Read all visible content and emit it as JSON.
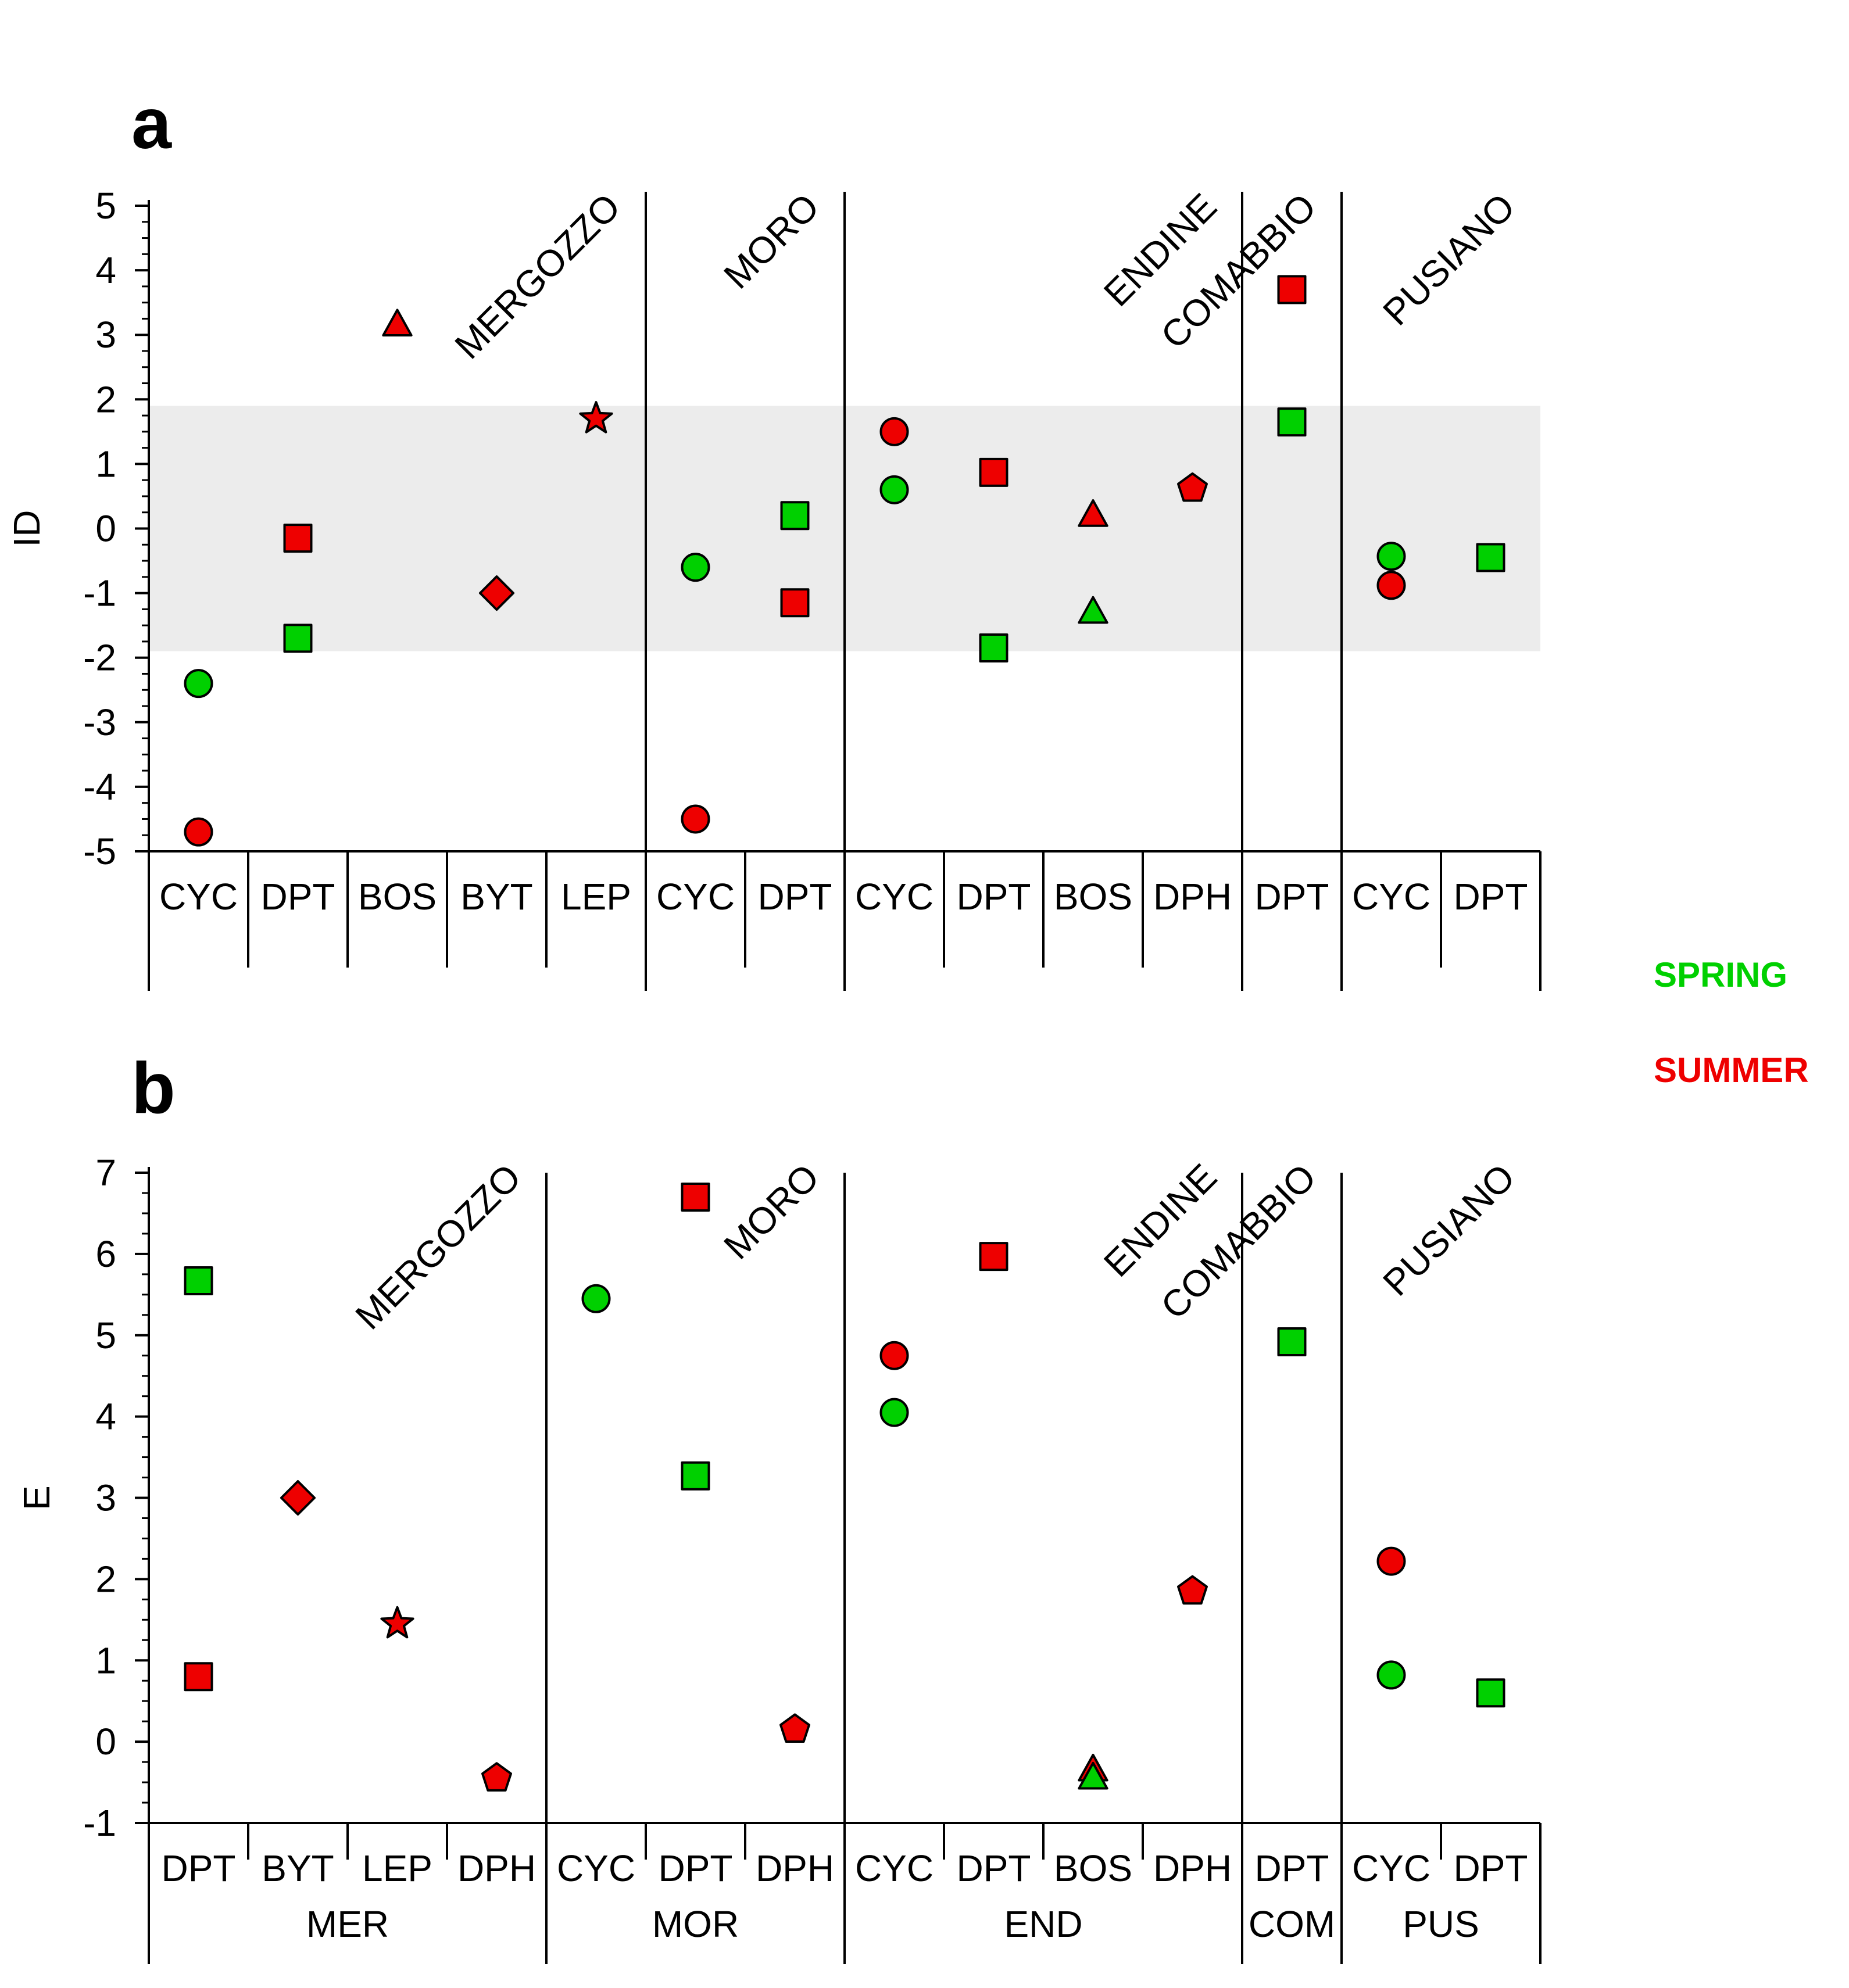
{
  "colors": {
    "spring": "#00d000",
    "summer": "#ee0000",
    "shade": "#ececec"
  },
  "legend": {
    "spring": "SPRING",
    "summer": "SUMMER"
  },
  "chart_data": [
    {
      "panel": "a",
      "type": "scatter",
      "ylabel": "ID",
      "ylim": [
        -5,
        5
      ],
      "yticks": [
        -5,
        -4,
        -3,
        -2,
        -1,
        0,
        1,
        2,
        3,
        4,
        5
      ],
      "yticklabels": [
        "-5",
        "-4",
        "-3",
        "-2",
        "-1",
        "0",
        "1",
        "2",
        "3",
        "4",
        "5"
      ],
      "shaded_band": [
        -1.9,
        1.9
      ],
      "categories": [
        "CYC",
        "DPT",
        "BOS",
        "BYT",
        "LEP",
        "CYC",
        "DPT",
        "CYC",
        "DPT",
        "BOS",
        "DPH",
        "DPT",
        "CYC",
        "DPT"
      ],
      "groups": [
        {
          "name": "MERGOZZO",
          "start": 0,
          "end": 4
        },
        {
          "name": "MORO",
          "start": 5,
          "end": 6
        },
        {
          "name": "ENDINE",
          "start": 7,
          "end": 10
        },
        {
          "name": "COMABBIO",
          "start": 11,
          "end": 11
        },
        {
          "name": "PUSIANO",
          "start": 12,
          "end": 13
        }
      ],
      "points": [
        {
          "i": 0,
          "season": "spring",
          "shape": "circle",
          "y": -2.4
        },
        {
          "i": 0,
          "season": "summer",
          "shape": "circle",
          "y": -4.7
        },
        {
          "i": 1,
          "season": "summer",
          "shape": "square",
          "y": -0.15
        },
        {
          "i": 1,
          "season": "spring",
          "shape": "square",
          "y": -1.7
        },
        {
          "i": 2,
          "season": "summer",
          "shape": "triangle",
          "y": 3.15
        },
        {
          "i": 3,
          "season": "summer",
          "shape": "diamond",
          "y": -1.0
        },
        {
          "i": 4,
          "season": "summer",
          "shape": "star",
          "y": 1.7
        },
        {
          "i": 5,
          "season": "spring",
          "shape": "circle",
          "y": -0.6
        },
        {
          "i": 5,
          "season": "summer",
          "shape": "circle",
          "y": -4.5
        },
        {
          "i": 6,
          "season": "spring",
          "shape": "square",
          "y": 0.2
        },
        {
          "i": 6,
          "season": "summer",
          "shape": "square",
          "y": -1.15
        },
        {
          "i": 7,
          "season": "summer",
          "shape": "circle",
          "y": 1.5
        },
        {
          "i": 7,
          "season": "spring",
          "shape": "circle",
          "y": 0.6
        },
        {
          "i": 8,
          "season": "summer",
          "shape": "square",
          "y": 0.87
        },
        {
          "i": 8,
          "season": "spring",
          "shape": "square",
          "y": -1.85
        },
        {
          "i": 9,
          "season": "summer",
          "shape": "triangle",
          "y": 0.2
        },
        {
          "i": 9,
          "season": "spring",
          "shape": "triangle",
          "y": -1.3
        },
        {
          "i": 10,
          "season": "summer",
          "shape": "pentagon",
          "y": 0.62
        },
        {
          "i": 11,
          "season": "summer",
          "shape": "square",
          "y": 3.7
        },
        {
          "i": 11,
          "season": "spring",
          "shape": "square",
          "y": 1.65
        },
        {
          "i": 12,
          "season": "spring",
          "shape": "circle",
          "y": -0.43
        },
        {
          "i": 12,
          "season": "summer",
          "shape": "circle",
          "y": -0.88
        },
        {
          "i": 13,
          "season": "spring",
          "shape": "square",
          "y": -0.45
        }
      ]
    },
    {
      "panel": "b",
      "type": "scatter",
      "ylabel": "E",
      "ylim": [
        -1,
        7
      ],
      "yticks": [
        -1,
        0,
        1,
        2,
        3,
        4,
        5,
        6,
        7
      ],
      "yticklabels": [
        "-1",
        "0",
        "1",
        "2",
        "3",
        "4",
        "5",
        "6",
        "7"
      ],
      "categories": [
        "DPT",
        "BYT",
        "LEP",
        "DPH",
        "CYC",
        "DPT",
        "DPH",
        "CYC",
        "DPT",
        "BOS",
        "DPH",
        "DPT",
        "CYC",
        "DPT"
      ],
      "groups": [
        {
          "name": "MERGOZZO",
          "abbr": "MER",
          "start": 0,
          "end": 3
        },
        {
          "name": "MORO",
          "abbr": "MOR",
          "start": 4,
          "end": 6
        },
        {
          "name": "ENDINE",
          "abbr": "END",
          "start": 7,
          "end": 10
        },
        {
          "name": "COMABBIO",
          "abbr": "COM",
          "start": 11,
          "end": 11
        },
        {
          "name": "PUSIANO",
          "abbr": "PUS",
          "start": 12,
          "end": 13
        }
      ],
      "points": [
        {
          "i": 0,
          "season": "spring",
          "shape": "square",
          "y": 5.67
        },
        {
          "i": 0,
          "season": "summer",
          "shape": "square",
          "y": 0.8
        },
        {
          "i": 1,
          "season": "summer",
          "shape": "diamond",
          "y": 3.0
        },
        {
          "i": 2,
          "season": "summer",
          "shape": "star",
          "y": 1.45
        },
        {
          "i": 3,
          "season": "summer",
          "shape": "pentagon",
          "y": -0.45
        },
        {
          "i": 4,
          "season": "spring",
          "shape": "circle",
          "y": 5.45
        },
        {
          "i": 5,
          "season": "summer",
          "shape": "square",
          "y": 6.7
        },
        {
          "i": 5,
          "season": "spring",
          "shape": "square",
          "y": 3.27
        },
        {
          "i": 6,
          "season": "summer",
          "shape": "pentagon",
          "y": 0.15
        },
        {
          "i": 7,
          "season": "summer",
          "shape": "circle",
          "y": 4.75
        },
        {
          "i": 7,
          "season": "spring",
          "shape": "circle",
          "y": 4.05
        },
        {
          "i": 8,
          "season": "summer",
          "shape": "square",
          "y": 5.97
        },
        {
          "i": 9,
          "season": "summer",
          "shape": "triangle",
          "y": -0.35
        },
        {
          "i": 9,
          "season": "spring",
          "shape": "triangle",
          "y": -0.45
        },
        {
          "i": 10,
          "season": "summer",
          "shape": "pentagon",
          "y": 1.85
        },
        {
          "i": 11,
          "season": "spring",
          "shape": "square",
          "y": 4.92
        },
        {
          "i": 12,
          "season": "summer",
          "shape": "circle",
          "y": 2.22
        },
        {
          "i": 12,
          "season": "spring",
          "shape": "circle",
          "y": 0.82
        },
        {
          "i": 13,
          "season": "spring",
          "shape": "square",
          "y": 0.6
        }
      ]
    }
  ]
}
